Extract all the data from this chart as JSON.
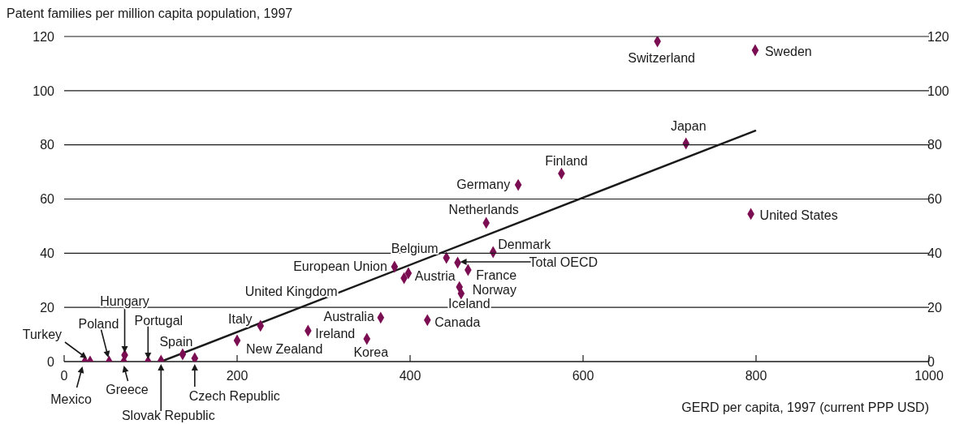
{
  "chart_data": {
    "type": "scatter",
    "ylabel": "Patent families per million capita population, 1997",
    "xlabel": "GERD per capita, 1997 (current PPP USD)",
    "xlim": [
      0,
      1000
    ],
    "xticks": [
      0,
      200,
      400,
      600,
      800,
      1000
    ],
    "ylim": [
      0,
      120
    ],
    "yticks": [
      0,
      20,
      40,
      60,
      80,
      100,
      120
    ],
    "y2lim": [
      0,
      120
    ],
    "y2ticks": [
      0,
      20,
      40,
      60,
      80,
      100,
      120
    ],
    "grid": "y",
    "marker": "diamond",
    "series": [
      {
        "type": "scatter",
        "color": "#7b0d52",
        "x": [
          24,
          30,
          52,
          69,
          70,
          97,
          112,
          137,
          151,
          200,
          227,
          282,
          350,
          366,
          420,
          382,
          393,
          398,
          442,
          455,
          467,
          457,
          459,
          496,
          488,
          525,
          575,
          719,
          686,
          799,
          794
        ],
        "values": [
          0,
          0,
          0,
          0,
          2.4,
          0,
          0.3,
          2.7,
          1.2,
          7.8,
          13.2,
          11.4,
          8.4,
          16.2,
          15.3,
          35,
          30.8,
          32.6,
          38.3,
          36.5,
          33.8,
          27.5,
          25.1,
          40.4,
          51.2,
          65.2,
          69.4,
          80.5,
          118.2,
          114.9,
          54.5
        ]
      },
      {
        "type": "line",
        "marker": "none",
        "color": "#1a1a1a",
        "x": [
          112,
          800
        ],
        "values": [
          0,
          85.3
        ]
      }
    ],
    "annotations": [
      {
        "text": "Mexico",
        "x": 24,
        "y": 0
      },
      {
        "text": "Turkey",
        "x": 30,
        "y": 0
      },
      {
        "text": "Poland",
        "x": 52,
        "y": 0
      },
      {
        "text": "Greece",
        "x": 69,
        "y": 0
      },
      "Hungary",
      {
        "text": "Portugal",
        "x": 97,
        "y": 0
      },
      "Slovak Republic",
      {
        "text": "Spain",
        "x": 137,
        "y": 2.7
      },
      {
        "text": "Czech Republic",
        "x": 151,
        "y": 1.2
      },
      {
        "text": "New Zealand",
        "x": 200,
        "y": 7.8
      },
      {
        "text": "Italy",
        "x": 227,
        "y": 13.2
      },
      {
        "text": "Ireland",
        "x": 282,
        "y": 11.4
      },
      {
        "text": "Korea",
        "x": 350,
        "y": 8.4
      },
      {
        "text": "Australia",
        "x": 366,
        "y": 16.2
      },
      {
        "text": "Canada",
        "x": 420,
        "y": 15.3
      },
      {
        "text": "European Union",
        "x": 382,
        "y": 35
      },
      "United Kingdom",
      {
        "text": "Austria",
        "x": 398,
        "y": 32.6
      },
      {
        "text": "Belgium",
        "x": 442,
        "y": 38.3
      },
      "Total OECD",
      {
        "text": "France",
        "x": 467,
        "y": 33.8
      },
      {
        "text": "Norway",
        "x": 457,
        "y": 27.5
      },
      {
        "text": "Iceland",
        "x": 459,
        "y": 25.1
      },
      {
        "text": "Denmark",
        "x": 496,
        "y": 40.4
      },
      {
        "text": "Netherlands",
        "x": 488,
        "y": 51.2
      },
      {
        "text": "Germany",
        "x": 525,
        "y": 65.2
      },
      {
        "text": "Finland",
        "x": 575,
        "y": 69.4
      },
      {
        "text": "Japan",
        "x": 719,
        "y": 80.5
      },
      {
        "text": "Switzerland",
        "x": 686,
        "y": 118.2
      },
      {
        "text": "Sweden",
        "x": 799,
        "y": 114.9
      },
      {
        "text": "United States",
        "x": 794,
        "y": 54.5
      }
    ]
  }
}
